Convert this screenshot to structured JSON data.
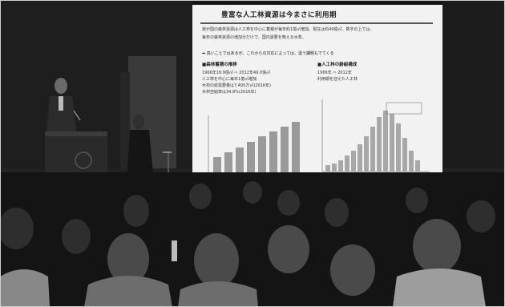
{
  "slide": {
    "title": "豊富な人工林資源は今まさに利用期",
    "bullets": [
      "我が国の森林資源は人工林を中心に蓄積が毎年約1億㎥増加。現在は約49億㎥、数字の上では、",
      "毎年の森林資源の増加分だけで、国内需要を賄える水準。",
      "高いことではあるが、これからの対応によっては、違う課題もでてくる"
    ],
    "left_heading": "■森林蓄積の推移",
    "left_stat": "1966年18.9億㎥ ⇨ 2012年49.0億㎥",
    "left_points": [
      "人工林を中心に毎年1億㎥増加",
      "木材の総需要量は7,400万㎥(2016年)",
      "木材自給率は34.8%(2016年)"
    ],
    "right_heading": "■人工林の齢級構成",
    "right_labels": [
      "1966年",
      "2012年"
    ],
    "right_note": "利用期を迎えた人工林"
  },
  "colors": {
    "room": "#1a1a1a",
    "screen": "#f2f2f2",
    "bars": "#9a9a9a"
  }
}
